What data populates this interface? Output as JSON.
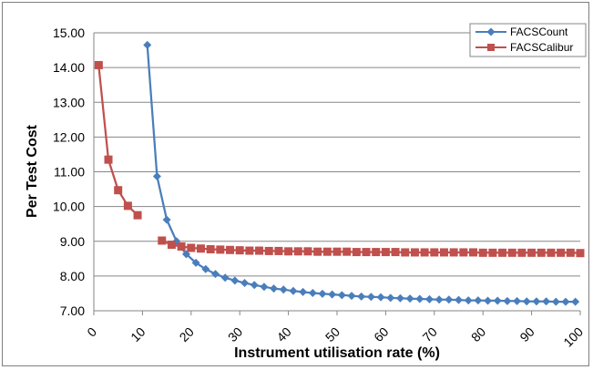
{
  "chart_data": {
    "type": "line",
    "xlabel": "Instrument utilisation rate (%)",
    "ylabel": "Per Test Cost",
    "xlim": [
      0,
      100
    ],
    "ylim": [
      7.0,
      15.0
    ],
    "x_ticks": [
      "0",
      "10",
      "20",
      "30",
      "40",
      "50",
      "60",
      "70",
      "80",
      "90",
      "100"
    ],
    "y_ticks": [
      "7.00",
      "8.00",
      "9.00",
      "10.00",
      "11.00",
      "12.00",
      "13.00",
      "14.00",
      "15.00"
    ],
    "grid": true,
    "legend_position": "top-right",
    "series": [
      {
        "name": "FACSCount",
        "color": "#4a7ebb",
        "marker": "diamond",
        "points": [
          [
            11,
            14.65
          ],
          [
            13,
            10.87
          ],
          [
            15,
            9.62
          ],
          [
            17,
            9.0
          ],
          [
            19,
            8.63
          ],
          [
            21,
            8.38
          ],
          [
            23,
            8.2
          ],
          [
            25,
            8.06
          ],
          [
            27,
            7.95
          ],
          [
            29,
            7.87
          ],
          [
            31,
            7.8
          ],
          [
            33,
            7.74
          ],
          [
            35,
            7.69
          ],
          [
            37,
            7.64
          ],
          [
            39,
            7.61
          ],
          [
            41,
            7.57
          ],
          [
            43,
            7.54
          ],
          [
            45,
            7.51
          ],
          [
            47,
            7.49
          ],
          [
            49,
            7.47
          ],
          [
            51,
            7.45
          ],
          [
            53,
            7.43
          ],
          [
            55,
            7.41
          ],
          [
            57,
            7.4
          ],
          [
            59,
            7.39
          ],
          [
            61,
            7.37
          ],
          [
            63,
            7.36
          ],
          [
            65,
            7.35
          ],
          [
            67,
            7.34
          ],
          [
            69,
            7.33
          ],
          [
            71,
            7.32
          ],
          [
            73,
            7.32
          ],
          [
            75,
            7.31
          ],
          [
            77,
            7.3
          ],
          [
            79,
            7.3
          ],
          [
            81,
            7.29
          ],
          [
            83,
            7.29
          ],
          [
            85,
            7.28
          ],
          [
            87,
            7.28
          ],
          [
            89,
            7.27
          ],
          [
            91,
            7.27
          ],
          [
            93,
            7.27
          ],
          [
            95,
            7.26
          ],
          [
            97,
            7.26
          ],
          [
            99,
            7.26
          ]
        ]
      },
      {
        "name": "FACSCalibur",
        "color": "#c0504d",
        "marker": "square",
        "segments": [
          [
            [
              1,
              14.07
            ],
            [
              3,
              11.35
            ],
            [
              5,
              10.47
            ],
            [
              7,
              10.02
            ],
            [
              9,
              9.75
            ]
          ],
          [
            [
              14,
              9.02
            ],
            [
              16,
              8.9
            ],
            [
              18,
              8.85
            ],
            [
              20,
              8.81
            ],
            [
              22,
              8.79
            ],
            [
              24,
              8.77
            ],
            [
              26,
              8.76
            ],
            [
              28,
              8.75
            ],
            [
              30,
              8.74
            ],
            [
              32,
              8.73
            ],
            [
              34,
              8.73
            ],
            [
              36,
              8.72
            ],
            [
              38,
              8.72
            ],
            [
              40,
              8.71
            ],
            [
              42,
              8.71
            ],
            [
              44,
              8.71
            ],
            [
              46,
              8.7
            ],
            [
              48,
              8.7
            ],
            [
              50,
              8.7
            ],
            [
              52,
              8.7
            ],
            [
              54,
              8.69
            ],
            [
              56,
              8.69
            ],
            [
              58,
              8.69
            ],
            [
              60,
              8.69
            ],
            [
              62,
              8.69
            ],
            [
              64,
              8.68
            ],
            [
              66,
              8.68
            ],
            [
              68,
              8.68
            ],
            [
              70,
              8.68
            ],
            [
              72,
              8.68
            ],
            [
              74,
              8.68
            ],
            [
              76,
              8.68
            ],
            [
              78,
              8.68
            ],
            [
              80,
              8.67
            ],
            [
              82,
              8.67
            ],
            [
              84,
              8.67
            ],
            [
              86,
              8.67
            ],
            [
              88,
              8.67
            ],
            [
              90,
              8.67
            ],
            [
              92,
              8.67
            ],
            [
              94,
              8.67
            ],
            [
              96,
              8.67
            ],
            [
              98,
              8.67
            ],
            [
              100,
              8.66
            ]
          ]
        ]
      }
    ]
  }
}
